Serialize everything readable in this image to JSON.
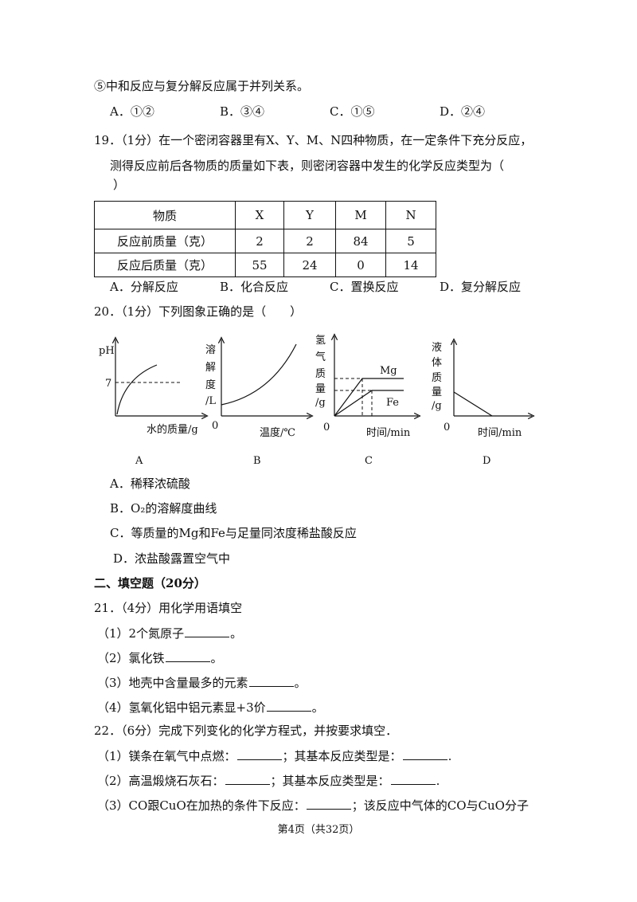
{
  "question_18_tail": {
    "statement": "⑤中和反应与复分解反应属于并列关系。",
    "options": [
      "A．①②",
      "B．③④",
      "C．①⑤",
      "D．②④"
    ]
  },
  "question_19": {
    "stem_lines": [
      "19．（1分）在一个密闭容器里有X、Y、M、N四种物质，在一定条件下充分反应，",
      "测得反应前后各物质的质量如下表，则密闭容器中发生的化学反应类型为（",
      "）"
    ],
    "table": {
      "header": [
        "物质",
        "X",
        "Y",
        "M",
        "N"
      ],
      "rows": [
        [
          "反应前质量（克）",
          2,
          2,
          84,
          5
        ],
        [
          "反应后质量（克）",
          55,
          24,
          0,
          14
        ]
      ]
    },
    "options": [
      "A．分解反应",
      "B．化合反应",
      "C．置换反应",
      "D．复分解反应"
    ]
  },
  "question_20": {
    "stem": "20．（1分）下列图象正确的是（　　）",
    "graphs": [
      {
        "label": "A",
        "y_label": [
          "pH"
        ],
        "tick": "7",
        "x_label": "水的质量/g"
      },
      {
        "label": "B",
        "y_label": [
          "溶",
          "解",
          "度",
          "/L"
        ],
        "origin": "0",
        "x_label": "温度/℃"
      },
      {
        "label": "C",
        "y_label": [
          "氢",
          "气",
          "质",
          "量",
          "/g"
        ],
        "origin": "0",
        "curves": [
          "Mg",
          "Fe"
        ],
        "x_label": "时间/min"
      },
      {
        "label": "D",
        "y_label": [
          "液",
          "体",
          "质",
          "量",
          "/g"
        ],
        "origin": "0",
        "x_label": "时间/min"
      }
    ],
    "options": [
      "A．稀释浓硫酸",
      "B．O₂的溶解度曲线",
      "C．等质量的Mg和Fe与足量同浓度稀盐酸反应",
      "D．浓盐酸露置空气中"
    ]
  },
  "section_2": "二、填空题（20分）",
  "question_21": {
    "stem": "21．（4分）用化学用语填空",
    "items": [
      [
        "（1）2个氮原子",
        "。"
      ],
      [
        "（2）氯化铁",
        "。"
      ],
      [
        "（3）地壳中含量最多的元素",
        "。"
      ],
      [
        "（4）氢氧化铝中铝元素显+3价",
        "。"
      ]
    ]
  },
  "question_22": {
    "stem": "22．（6分）完成下列变化的化学方程式，并按要求填空．",
    "items": [
      [
        "（1）镁条在氧气中点燃：",
        "；其基本反应类型是：",
        "."
      ],
      [
        "（2）高温煅烧石灰石：",
        "；其基本反应类型是：",
        "."
      ],
      [
        "（3）CO跟CuO在加热的条件下反应：",
        "；该反应中气体的CO与CuO分子"
      ]
    ]
  },
  "footer": "第4页（共32页）"
}
